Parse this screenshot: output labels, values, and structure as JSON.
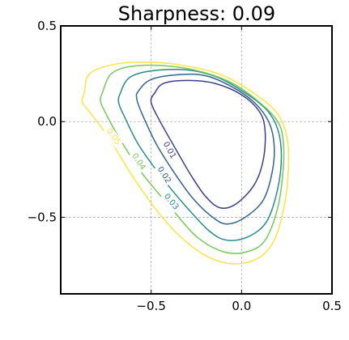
{
  "chart_data": {
    "type": "contour",
    "title": "Sharpness: 0.09",
    "xlabel": "",
    "ylabel": "",
    "xlim": [
      -1.0,
      0.5
    ],
    "ylim": [
      -0.9,
      0.5
    ],
    "xticks": [
      -0.5,
      0.0,
      0.5
    ],
    "xtick_labels": [
      "−0.5",
      "0.0",
      "0.5"
    ],
    "yticks": [
      -0.5,
      0.0,
      0.5
    ],
    "ytick_labels": [
      "−0.5",
      "0.0",
      "0.5"
    ],
    "grid": true,
    "colormap": "viridis",
    "levels": [
      {
        "value": 0.01,
        "label": "0.01",
        "color": "#3b3f8a",
        "label_at": [
          -0.4,
          -0.15
        ],
        "points": [
          [
            -0.48,
            0.15
          ],
          [
            -0.43,
            0.2
          ],
          [
            -0.3,
            0.215
          ],
          [
            -0.15,
            0.2
          ],
          [
            0.0,
            0.14
          ],
          [
            0.1,
            0.05
          ],
          [
            0.13,
            -0.05
          ],
          [
            0.12,
            -0.2
          ],
          [
            0.07,
            -0.33
          ],
          [
            -0.03,
            -0.43
          ],
          [
            -0.12,
            -0.45
          ],
          [
            -0.2,
            -0.39
          ],
          [
            -0.28,
            -0.28
          ],
          [
            -0.36,
            -0.15
          ],
          [
            -0.45,
            0.0
          ],
          [
            -0.5,
            0.1
          ],
          [
            -0.48,
            0.15
          ]
        ]
      },
      {
        "value": 0.02,
        "label": "0.02",
        "color": "#33658d",
        "label_at": [
          -0.43,
          -0.28
        ],
        "points": [
          [
            -0.57,
            0.16
          ],
          [
            -0.5,
            0.22
          ],
          [
            -0.35,
            0.245
          ],
          [
            -0.2,
            0.24
          ],
          [
            -0.05,
            0.18
          ],
          [
            0.07,
            0.1
          ],
          [
            0.15,
            0.0
          ],
          [
            0.18,
            -0.12
          ],
          [
            0.17,
            -0.26
          ],
          [
            0.12,
            -0.41
          ],
          [
            0.02,
            -0.5
          ],
          [
            -0.08,
            -0.535
          ],
          [
            -0.16,
            -0.5
          ],
          [
            -0.27,
            -0.4
          ],
          [
            -0.37,
            -0.27
          ],
          [
            -0.47,
            -0.12
          ],
          [
            -0.55,
            0.04
          ],
          [
            -0.58,
            0.12
          ],
          [
            -0.57,
            0.16
          ]
        ]
      },
      {
        "value": 0.03,
        "label": "0.03",
        "color": "#268d8b",
        "label_at": [
          -0.39,
          -0.42
        ],
        "points": [
          [
            -0.67,
            0.15
          ],
          [
            -0.62,
            0.23
          ],
          [
            -0.5,
            0.265
          ],
          [
            -0.3,
            0.27
          ],
          [
            -0.13,
            0.23
          ],
          [
            0.02,
            0.15
          ],
          [
            0.14,
            0.06
          ],
          [
            0.2,
            -0.04
          ],
          [
            0.22,
            -0.18
          ],
          [
            0.2,
            -0.35
          ],
          [
            0.14,
            -0.52
          ],
          [
            0.04,
            -0.6
          ],
          [
            -0.08,
            -0.62
          ],
          [
            -0.18,
            -0.57
          ],
          [
            -0.32,
            -0.43
          ],
          [
            -0.45,
            -0.28
          ],
          [
            -0.57,
            -0.12
          ],
          [
            -0.65,
            0.03
          ],
          [
            -0.68,
            0.1
          ],
          [
            -0.67,
            0.15
          ]
        ]
      },
      {
        "value": 0.04,
        "label": "0.04",
        "color": "#77c85a",
        "label_at": [
          -0.57,
          -0.21
        ],
        "points": [
          [
            -0.77,
            0.15
          ],
          [
            -0.72,
            0.25
          ],
          [
            -0.6,
            0.29
          ],
          [
            -0.4,
            0.29
          ],
          [
            -0.22,
            0.26
          ],
          [
            -0.05,
            0.2
          ],
          [
            0.1,
            0.1
          ],
          [
            0.2,
            0.0
          ],
          [
            0.23,
            -0.1
          ],
          [
            0.23,
            -0.25
          ],
          [
            0.2,
            -0.45
          ],
          [
            0.13,
            -0.62
          ],
          [
            0.03,
            -0.68
          ],
          [
            -0.1,
            -0.68
          ],
          [
            -0.25,
            -0.6
          ],
          [
            -0.4,
            -0.44
          ],
          [
            -0.55,
            -0.27
          ],
          [
            -0.68,
            -0.08
          ],
          [
            -0.76,
            0.06
          ],
          [
            -0.78,
            0.11
          ],
          [
            -0.77,
            0.15
          ]
        ]
      },
      {
        "value": 0.05,
        "label": "0.05",
        "color": "#fde343",
        "label_at": [
          -0.71,
          -0.08
        ],
        "points": [
          [
            -0.87,
            0.15
          ],
          [
            -0.84,
            0.25
          ],
          [
            -0.7,
            0.3
          ],
          [
            -0.5,
            0.31
          ],
          [
            -0.3,
            0.29
          ],
          [
            -0.1,
            0.24
          ],
          [
            0.08,
            0.14
          ],
          [
            0.2,
            0.04
          ],
          [
            0.25,
            -0.08
          ],
          [
            0.26,
            -0.22
          ],
          [
            0.24,
            -0.42
          ],
          [
            0.18,
            -0.62
          ],
          [
            0.08,
            -0.72
          ],
          [
            -0.08,
            -0.74
          ],
          [
            -0.25,
            -0.67
          ],
          [
            -0.43,
            -0.51
          ],
          [
            -0.6,
            -0.29
          ],
          [
            -0.73,
            -0.09
          ],
          [
            -0.84,
            0.05
          ],
          [
            -0.88,
            0.1
          ],
          [
            -0.87,
            0.15
          ]
        ]
      }
    ]
  }
}
